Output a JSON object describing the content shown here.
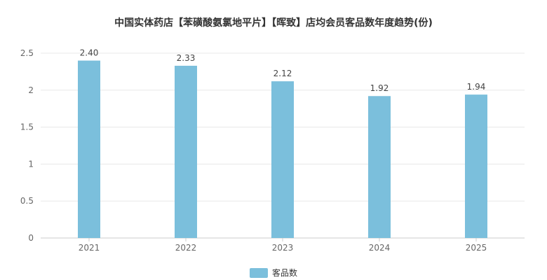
{
  "chart_data": {
    "type": "bar",
    "title": "中国实体药店【苯磺酸氨氯地平片】【晖致】店均会员客品数年度趋势(份)",
    "categories": [
      "2021",
      "2022",
      "2023",
      "2024",
      "2025"
    ],
    "series": [
      {
        "name": "客品数",
        "values": [
          2.4,
          2.33,
          2.12,
          1.92,
          1.94
        ]
      }
    ],
    "data_labels": [
      "2.40",
      "2.33",
      "2.12",
      "1.92",
      "1.94"
    ],
    "y_ticks": [
      "0",
      "0.5",
      "1",
      "1.5",
      "2",
      "2.5"
    ],
    "ylim": [
      0,
      2.5
    ],
    "xlabel": "",
    "ylabel": "",
    "grid": true,
    "legend_position": "bottom",
    "colors": {
      "bar": "#7bbfdc",
      "grid": "#e8e8e8",
      "axis": "#cccccc"
    }
  }
}
